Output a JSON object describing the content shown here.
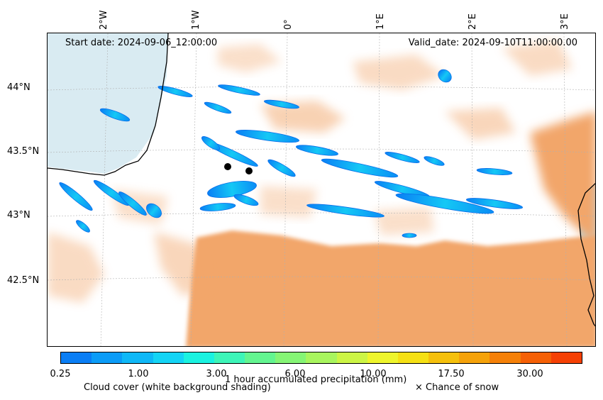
{
  "map": {
    "start_date": "Start date: 2024-09-06_12:00:00",
    "valid_date": "Valid_date: 2024-09-10T11:00:00.00",
    "lon_labels": [
      "2°W",
      "1°W",
      "0°",
      "1°E",
      "2°E",
      "3°E"
    ],
    "lat_labels": [
      "44°N",
      "43.5°N",
      "43°N",
      "42.5°N"
    ],
    "colors": {
      "cloud": "#f2a66a",
      "sea": "#b9dbe8",
      "coast": "#000000",
      "marker": "#000000"
    }
  },
  "colorbar": {
    "title": "1 hour accumulated precipitation (mm)",
    "tick_labels": [
      "0.25",
      "1.00",
      "3.00",
      "6.00",
      "10.00",
      "17.50",
      "30.00"
    ],
    "colors": [
      "#0a7ef5",
      "#0b9cf7",
      "#0fb8f7",
      "#14d4f5",
      "#1af2e0",
      "#3df5b8",
      "#63f590",
      "#85f575",
      "#a8f55e",
      "#ccf545",
      "#eef52c",
      "#f5e014",
      "#f5c00c",
      "#f5a20a",
      "#f58008",
      "#f56006",
      "#f54004"
    ]
  },
  "legend": {
    "cloud_cover": "Cloud cover (white background shading)",
    "snow": "× Chance of snow"
  }
}
